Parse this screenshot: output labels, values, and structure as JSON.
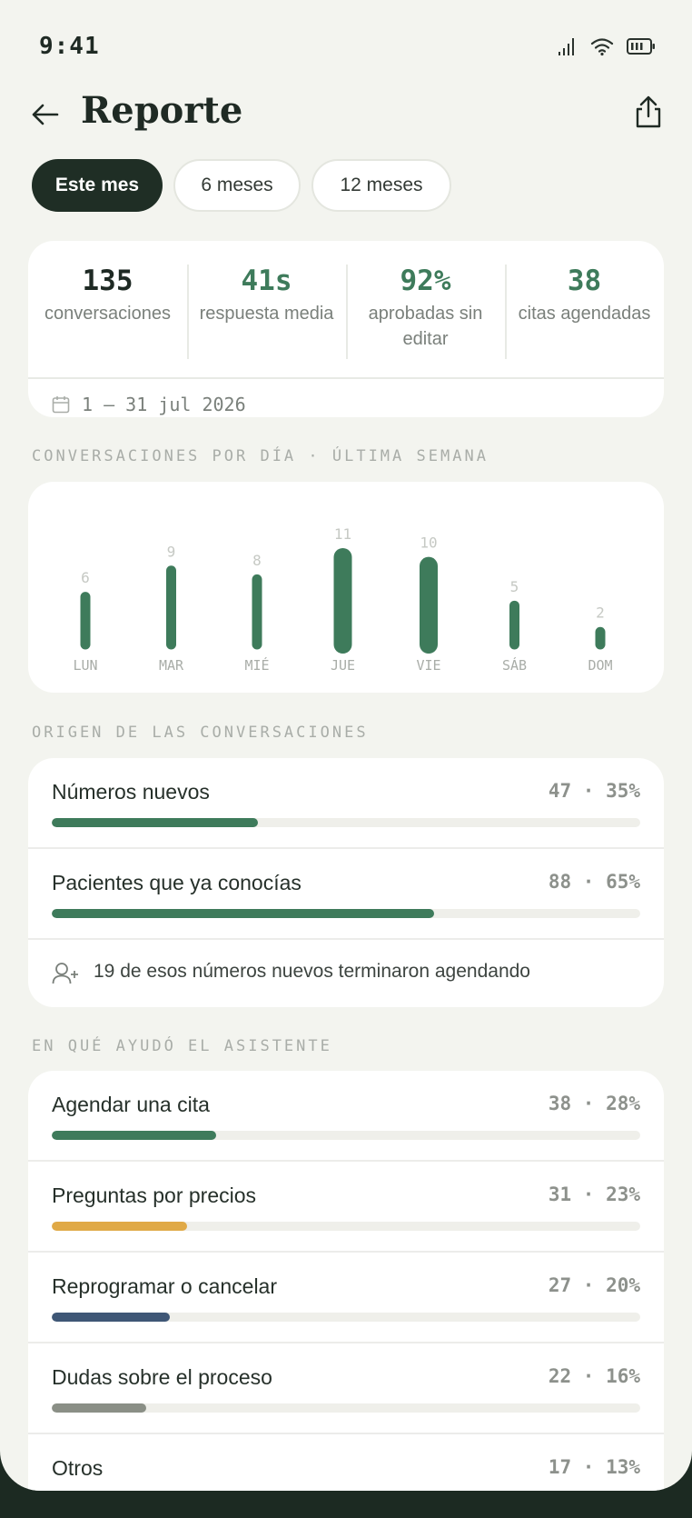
{
  "status_bar": {
    "time": "9:41"
  },
  "header": {
    "title": "Reporte"
  },
  "tabs": [
    {
      "label": "Este mes",
      "active": true
    },
    {
      "label": "6 meses",
      "active": false
    },
    {
      "label": "12 meses",
      "active": false
    }
  ],
  "kpis": [
    {
      "value": "135",
      "label": "conversaciones"
    },
    {
      "value": "41s",
      "label": "respuesta media"
    },
    {
      "value": "92%",
      "label": "aprobadas sin editar"
    },
    {
      "value": "38",
      "label": "citas agendadas"
    }
  ],
  "date_range": "1 – 31 jul 2026",
  "sections": {
    "daily": "CONVERSACIONES POR DÍA · ÚLTIMA SEMANA",
    "origin": "ORIGEN DE LAS CONVERSACIONES",
    "help": "EN QUÉ AYUDÓ EL ASISTENTE"
  },
  "chart_data": {
    "type": "bar",
    "categories": [
      "LUN",
      "MAR",
      "MIÉ",
      "JUE",
      "VIE",
      "SÁB",
      "DOM"
    ],
    "values": [
      6,
      9,
      8,
      11,
      10,
      5,
      2
    ],
    "ylim": [
      0,
      11
    ],
    "grid": false,
    "color": "#3e7b5b"
  },
  "origin": {
    "items": [
      {
        "label": "Números nuevos",
        "count": "47",
        "pct": "35%",
        "fraction": 0.35,
        "color": "#3e7b5b"
      },
      {
        "label": "Pacientes que ya conocías",
        "count": "88",
        "pct": "65%",
        "fraction": 0.65,
        "color": "#3e7b5b"
      }
    ],
    "note": "19 de esos números nuevos terminaron agendando"
  },
  "help": {
    "items": [
      {
        "label": "Agendar una cita",
        "count": "38",
        "pct": "28%",
        "fraction": 0.28,
        "color": "#3e7b5b"
      },
      {
        "label": "Preguntas por precios",
        "count": "31",
        "pct": "23%",
        "fraction": 0.23,
        "color": "#e0a946"
      },
      {
        "label": "Reprogramar o cancelar",
        "count": "27",
        "pct": "20%",
        "fraction": 0.2,
        "color": "#3f5776"
      },
      {
        "label": "Dudas sobre el proceso",
        "count": "22",
        "pct": "16%",
        "fraction": 0.16,
        "color": "#8a8f86"
      },
      {
        "label": "Otros",
        "count": "17",
        "pct": "13%",
        "fraction": 0.13,
        "color": "#b9bcb5"
      }
    ]
  },
  "icons": {
    "back": "arrow-left-icon",
    "share": "share-icon",
    "calendar": "calendar-icon",
    "user_add": "user-plus-icon"
  }
}
